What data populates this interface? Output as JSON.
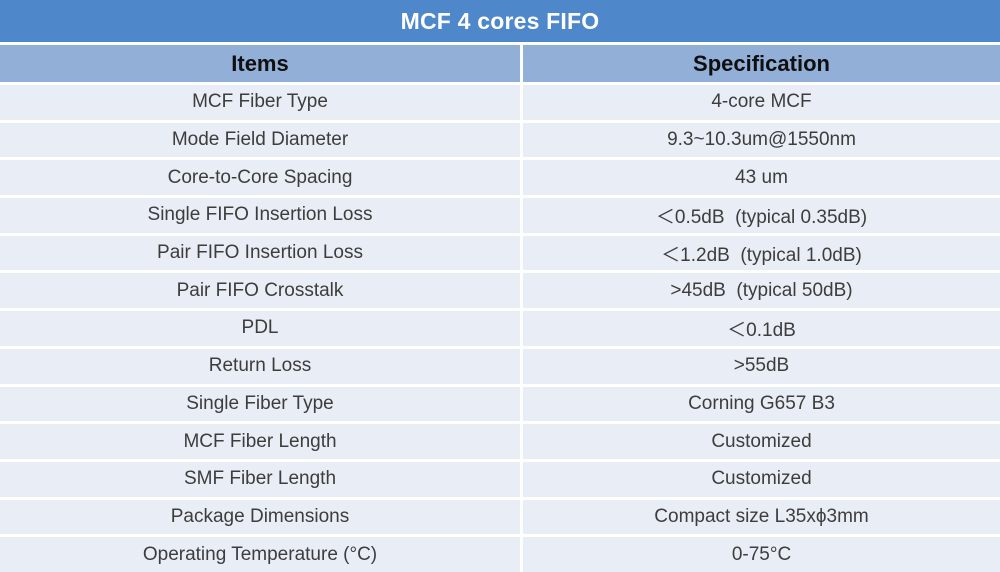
{
  "title": "MCF 4 cores FIFO",
  "colors": {
    "title_bar_bg": "#4E88CB",
    "header_bg": "#92AFD8",
    "row_bg": "#E9EDF5",
    "gap_color": "#FFFFFF",
    "title_text": "#FFFFFF",
    "header_text": "#0F0F0F",
    "body_text": "#3D3D3D"
  },
  "table": {
    "columns": [
      "Items",
      "Specification"
    ],
    "rows": [
      {
        "item": "MCF Fiber Type",
        "spec": "4-core MCF"
      },
      {
        "item": "Mode Field Diameter",
        "spec": "9.3~10.3um@1550nm"
      },
      {
        "item": "Core-to-Core Spacing",
        "spec": "43 um"
      },
      {
        "item": "Single FIFO Insertion Loss",
        "spec": "＜0.5dB  (typical 0.35dB)"
      },
      {
        "item": "Pair FIFO Insertion Loss",
        "spec": "＜1.2dB  (typical 1.0dB)"
      },
      {
        "item": "Pair FIFO Crosstalk",
        "spec": ">45dB  (typical 50dB)"
      },
      {
        "item": "PDL",
        "spec": "＜0.1dB"
      },
      {
        "item": "Return Loss",
        "spec": ">55dB"
      },
      {
        "item": "Single Fiber Type",
        "spec": "Corning G657 B3"
      },
      {
        "item": "MCF Fiber Length",
        "spec": "Customized"
      },
      {
        "item": "SMF Fiber Length",
        "spec": "Customized"
      },
      {
        "item": "Package Dimensions",
        "spec": "Compact size L35xϕ3mm"
      },
      {
        "item": "Operating Temperature (°C)",
        "spec": "0-75°C"
      }
    ]
  }
}
